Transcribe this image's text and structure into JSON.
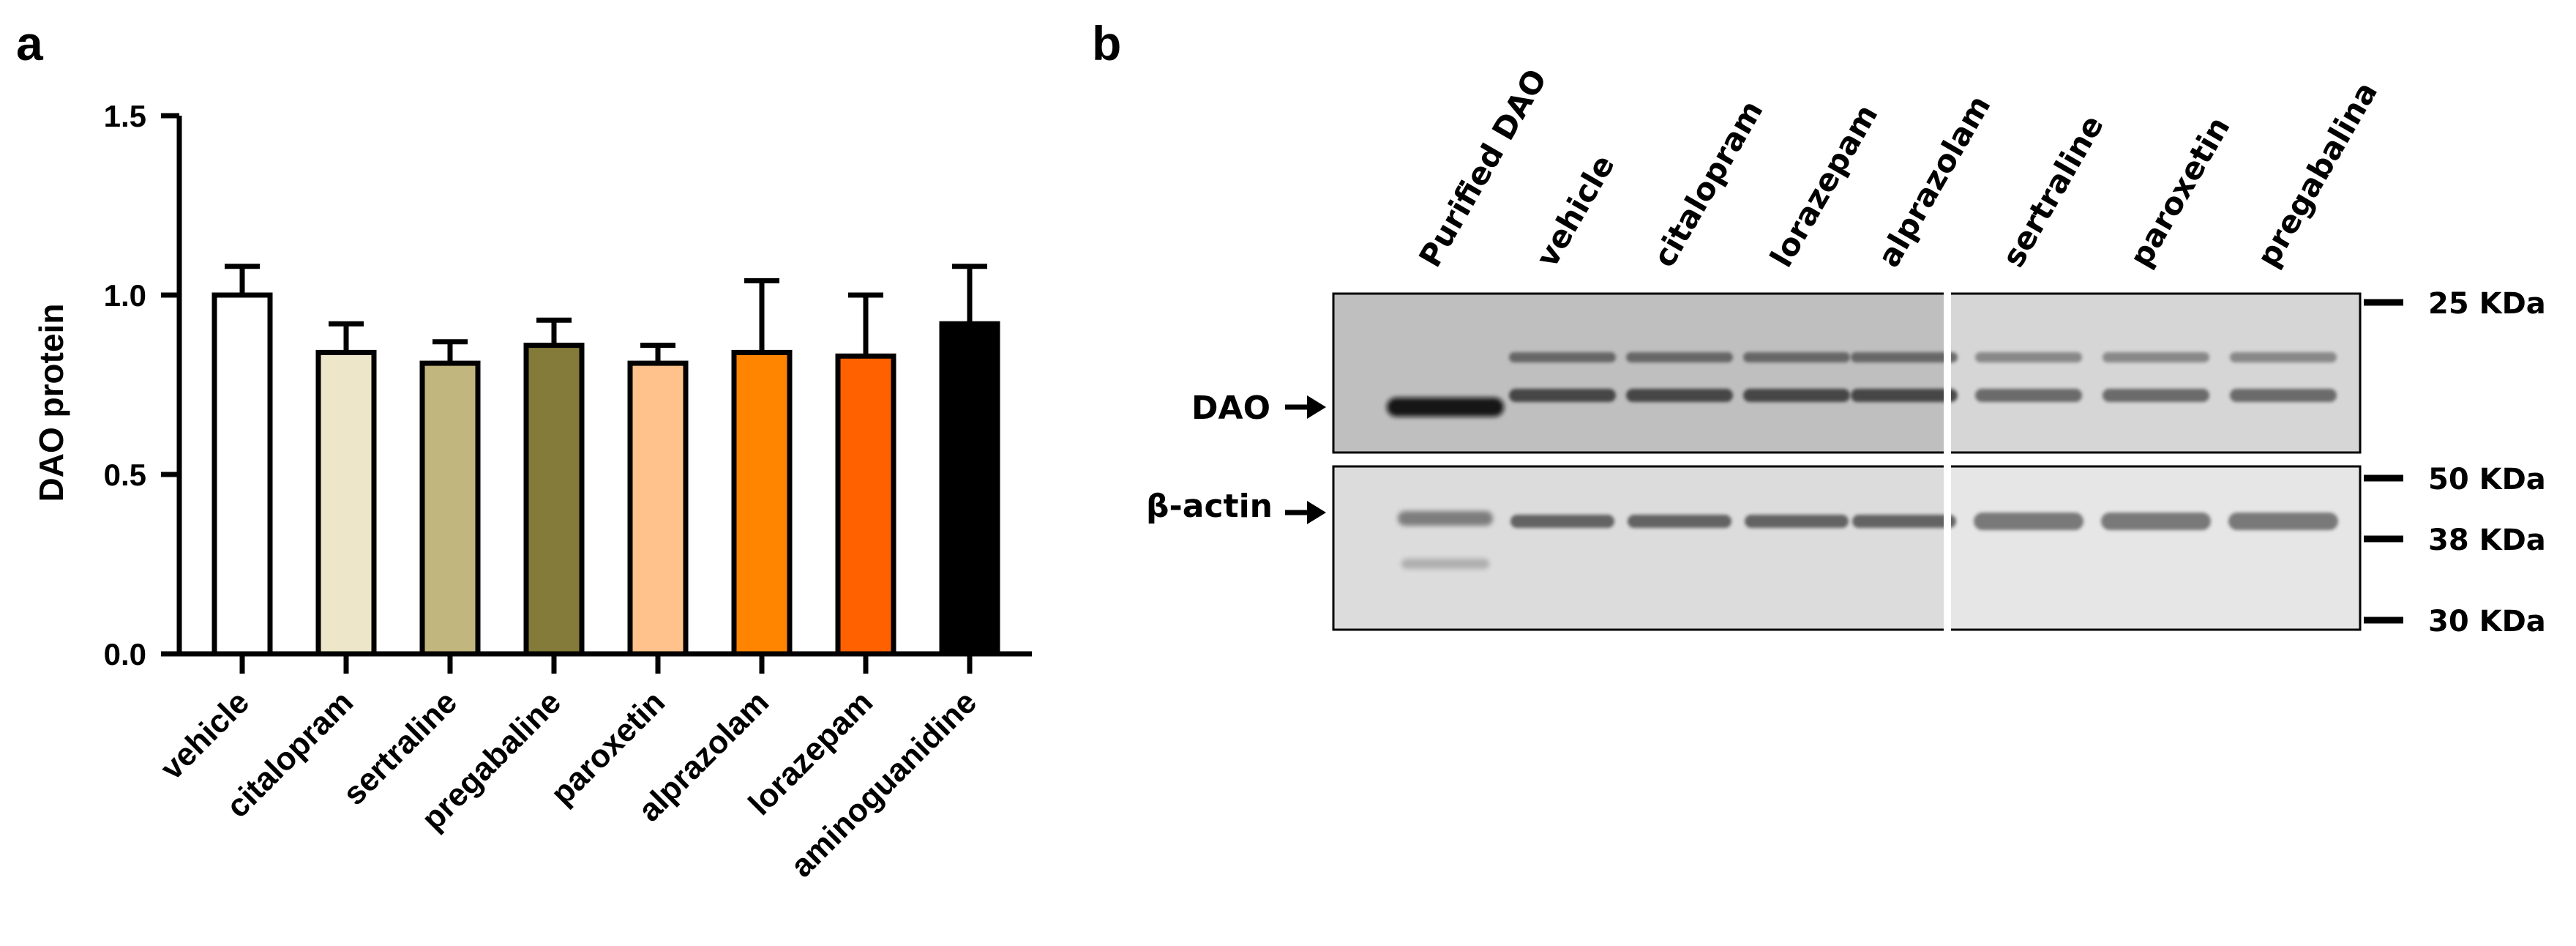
{
  "panels": {
    "a": "a",
    "b": "b"
  },
  "chart_data": {
    "type": "bar",
    "title": "",
    "xlabel": "",
    "ylabel": "DAO protein",
    "ylim": [
      0,
      1.5
    ],
    "yticks": [
      "0.0",
      "0.5",
      "1.0",
      "1.5"
    ],
    "categories": [
      "vehicle",
      "citalopram",
      "sertraline",
      "pregabaline",
      "paroxetin",
      "alprazolam",
      "lorazepam",
      "aminoguanidine"
    ],
    "values": [
      1.0,
      0.84,
      0.81,
      0.86,
      0.81,
      0.84,
      0.83,
      0.92
    ],
    "errors": [
      0.08,
      0.08,
      0.06,
      0.07,
      0.05,
      0.2,
      0.17,
      0.16
    ],
    "colors": [
      "#ffffff",
      "#ede6c8",
      "#c2b67f",
      "#847a39",
      "#ffc28c",
      "#ff8400",
      "#ff6000",
      "#000000"
    ],
    "grid": false,
    "legend": "none"
  },
  "blot": {
    "lanes": [
      "Purified DAO",
      "vehicle",
      "citalopram",
      "lorazepam",
      "alprazolam",
      "sertraline",
      "paroxetin",
      "pregabalina"
    ],
    "row_labels": {
      "dao": "DAO",
      "actin": "β-actin"
    },
    "markers": [
      "25 KDa",
      "50 KDa",
      "38 KDa",
      "30 KDa"
    ]
  }
}
